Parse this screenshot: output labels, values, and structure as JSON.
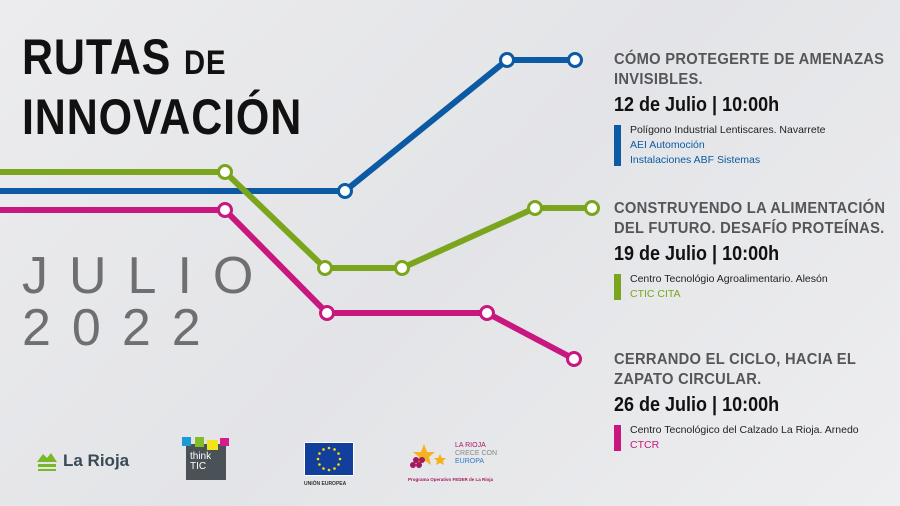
{
  "title": {
    "line1": "RUTAS",
    "de": "DE",
    "line2": "INNOVACIÓN"
  },
  "month": {
    "label": "JULIO",
    "year": "2022"
  },
  "colors": {
    "blue": "#0b5aa3",
    "green": "#7ba51d",
    "pink": "#c8177f",
    "gray_text": "#555658"
  },
  "events": [
    {
      "title": "CÓMO PROTEGERTE DE AMENAZAS INVISIBLES.",
      "date": "12 de Julio | 10:00h",
      "venue": "Polígono Industrial Lentiscares. Navarrete",
      "organizers": [
        "AEI Automoción",
        "Instalaciones ABF Sistemas"
      ],
      "color": "#0b5aa3"
    },
    {
      "title": "CONSTRUYENDO LA ALIMENTACIÓN DEL FUTURO. DESAFÍO PROTEÍNAS.",
      "date": "19 de Julio | 10:00h",
      "venue": "Centro Tecnológio Agroalimentario. Alesón",
      "organizers": [
        "CTIC CITA"
      ],
      "color": "#7ba51d"
    },
    {
      "title": "CERRANDO EL CICLO, HACIA EL ZAPATO CIRCULAR.",
      "date": "26 de Julio | 10:00h",
      "venue": "Centro Tecnológico del Calzado La Rioja. Arnedo",
      "organizers": [
        "CTCR"
      ],
      "color": "#c8177f"
    }
  ],
  "logos": {
    "la_rioja": "La Rioja",
    "think_tic": {
      "line1": "think",
      "line2": "TIC"
    },
    "eu": "UNIÓN EUROPEA",
    "feder": {
      "line1": "LA RIOJA",
      "line2": "CRECE CON",
      "line3": "EUROPA",
      "caption": "Programa Operativo FEDER de La Rioja"
    }
  }
}
